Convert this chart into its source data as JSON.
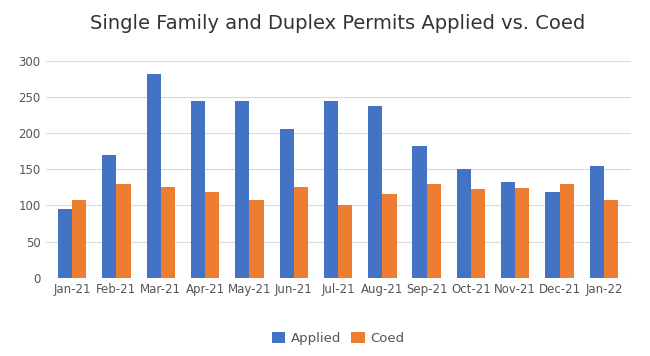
{
  "title": "Single Family and Duplex Permits Applied vs. Coed",
  "categories": [
    "Jan-21",
    "Feb-21",
    "Mar-21",
    "Apr-21",
    "May-21",
    "Jun-21",
    "Jul-21",
    "Aug-21",
    "Sep-21",
    "Oct-21",
    "Nov-21",
    "Dec-21",
    "Jan-22"
  ],
  "applied": [
    95,
    170,
    282,
    244,
    245,
    206,
    244,
    237,
    182,
    151,
    133,
    119,
    155
  ],
  "coed": [
    108,
    129,
    125,
    118,
    107,
    125,
    101,
    116,
    130,
    123,
    124,
    130,
    107
  ],
  "applied_color": "#4472C4",
  "coed_color": "#ED7D31",
  "legend_applied": "Applied",
  "legend_coed": "Coed",
  "ylim": [
    0,
    325
  ],
  "yticks": [
    0,
    50,
    100,
    150,
    200,
    250,
    300
  ],
  "background_color": "#ffffff",
  "title_fontsize": 14,
  "tick_fontsize": 8.5,
  "legend_fontsize": 9.5
}
